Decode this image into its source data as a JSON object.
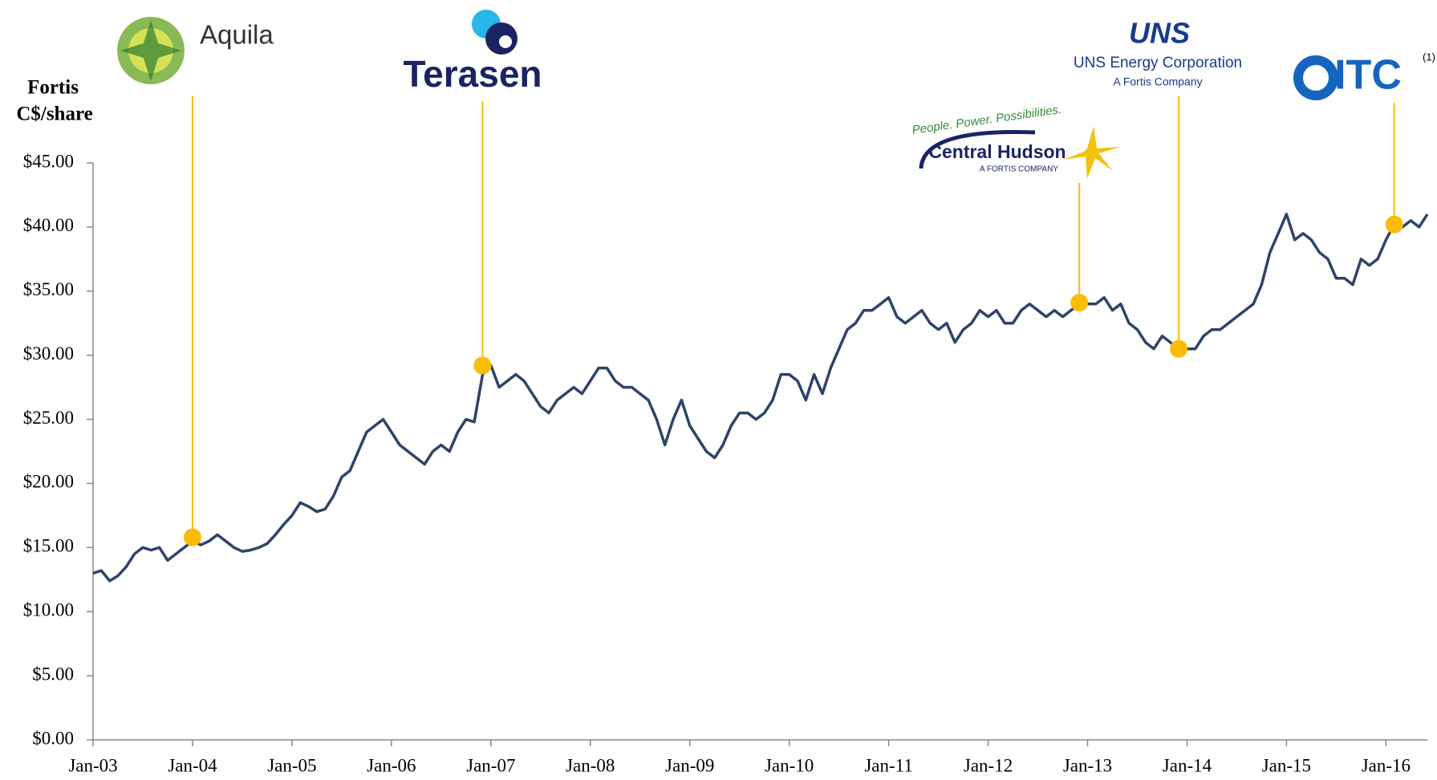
{
  "chart_data": {
    "type": "line",
    "y_label": [
      "Fortis",
      "C$/share"
    ],
    "x": [
      "2003-01",
      "2003-02",
      "2003-03",
      "2003-04",
      "2003-05",
      "2003-06",
      "2003-07",
      "2003-08",
      "2003-09",
      "2003-10",
      "2003-11",
      "2003-12",
      "2004-01",
      "2004-02",
      "2004-03",
      "2004-04",
      "2004-05",
      "2004-06",
      "2004-07",
      "2004-08",
      "2004-09",
      "2004-10",
      "2004-11",
      "2004-12",
      "2005-01",
      "2005-02",
      "2005-03",
      "2005-04",
      "2005-05",
      "2005-06",
      "2005-07",
      "2005-08",
      "2005-09",
      "2005-10",
      "2005-11",
      "2005-12",
      "2006-01",
      "2006-02",
      "2006-03",
      "2006-04",
      "2006-05",
      "2006-06",
      "2006-07",
      "2006-08",
      "2006-09",
      "2006-10",
      "2006-11",
      "2006-12",
      "2007-01",
      "2007-02",
      "2007-03",
      "2007-04",
      "2007-05",
      "2007-06",
      "2007-07",
      "2007-08",
      "2007-09",
      "2007-10",
      "2007-11",
      "2007-12",
      "2008-01",
      "2008-02",
      "2008-03",
      "2008-04",
      "2008-05",
      "2008-06",
      "2008-07",
      "2008-08",
      "2008-09",
      "2008-10",
      "2008-11",
      "2008-12",
      "2009-01",
      "2009-02",
      "2009-03",
      "2009-04",
      "2009-05",
      "2009-06",
      "2009-07",
      "2009-08",
      "2009-09",
      "2009-10",
      "2009-11",
      "2009-12",
      "2010-01",
      "2010-02",
      "2010-03",
      "2010-04",
      "2010-05",
      "2010-06",
      "2010-07",
      "2010-08",
      "2010-09",
      "2010-10",
      "2010-11",
      "2010-12",
      "2011-01",
      "2011-02",
      "2011-03",
      "2011-04",
      "2011-05",
      "2011-06",
      "2011-07",
      "2011-08",
      "2011-09",
      "2011-10",
      "2011-11",
      "2011-12",
      "2012-01",
      "2012-02",
      "2012-03",
      "2012-04",
      "2012-05",
      "2012-06",
      "2012-07",
      "2012-08",
      "2012-09",
      "2012-10",
      "2012-11",
      "2012-12",
      "2013-01",
      "2013-02",
      "2013-03",
      "2013-04",
      "2013-05",
      "2013-06",
      "2013-07",
      "2013-08",
      "2013-09",
      "2013-10",
      "2013-11",
      "2013-12",
      "2014-01",
      "2014-02",
      "2014-03",
      "2014-04",
      "2014-05",
      "2014-06",
      "2014-07",
      "2014-08",
      "2014-09",
      "2014-10",
      "2014-11",
      "2014-12",
      "2015-01",
      "2015-02",
      "2015-03",
      "2015-04",
      "2015-05",
      "2015-06",
      "2015-07",
      "2015-08",
      "2015-09",
      "2015-10",
      "2015-11",
      "2015-12",
      "2016-01",
      "2016-02",
      "2016-03",
      "2016-04",
      "2016-05",
      "2016-06"
    ],
    "series": [
      {
        "name": "Fortis",
        "color": "#2e4468",
        "values": [
          13.0,
          13.2,
          12.4,
          12.8,
          13.5,
          14.5,
          15.0,
          14.8,
          15.0,
          14.0,
          14.5,
          15.0,
          15.5,
          15.2,
          15.5,
          16.0,
          15.5,
          15.0,
          14.7,
          14.8,
          15.0,
          15.3,
          16.0,
          16.8,
          17.5,
          18.5,
          18.2,
          17.8,
          18.0,
          19.0,
          20.5,
          21.0,
          22.5,
          24.0,
          24.5,
          25.0,
          24.0,
          23.0,
          22.5,
          22.0,
          21.5,
          22.5,
          23.0,
          22.5,
          24.0,
          25.0,
          24.8,
          28.5,
          29.2,
          27.5,
          28.0,
          28.5,
          28.0,
          27.0,
          26.0,
          25.5,
          26.5,
          27.0,
          27.5,
          27.0,
          28.0,
          29.0,
          29.0,
          28.0,
          27.5,
          27.5,
          27.0,
          26.5,
          25.0,
          23.0,
          25.0,
          26.5,
          24.5,
          23.5,
          22.5,
          22.0,
          23.0,
          24.5,
          25.5,
          25.5,
          25.0,
          25.5,
          26.5,
          28.5,
          28.5,
          28.0,
          26.5,
          28.5,
          27.0,
          29.0,
          30.5,
          32.0,
          32.5,
          33.5,
          33.5,
          34.0,
          34.5,
          33.0,
          32.5,
          33.0,
          33.5,
          32.5,
          32.0,
          32.5,
          31.0,
          32.0,
          32.5,
          33.5,
          33.0,
          33.5,
          32.5,
          32.5,
          33.5,
          34.0,
          33.5,
          33.0,
          33.5,
          33.0,
          33.5,
          34.0,
          34.0,
          34.0,
          34.5,
          33.5,
          34.0,
          32.5,
          32.0,
          31.0,
          30.5,
          31.5,
          31.0,
          30.5,
          30.5,
          30.5,
          31.5,
          32.0,
          32.0,
          32.5,
          33.0,
          33.5,
          34.0,
          35.5,
          38.0,
          39.5,
          41.0,
          39.0,
          39.5,
          39.0,
          38.0,
          37.5,
          36.0,
          36.0,
          35.5,
          37.5,
          37.0,
          37.5,
          39.0,
          40.2,
          40.0,
          40.5,
          40.0,
          41.0
        ]
      }
    ],
    "events": {
      "color": "#fbbc05",
      "points": [
        {
          "x": "2004-01",
          "value": 15.8,
          "texts": [
            "Aquila"
          ]
        },
        {
          "x": "2006-12",
          "value": 29.2,
          "texts": [
            "Terasen"
          ]
        },
        {
          "x": "2012-12",
          "value": 34.1,
          "texts": [
            "People. Power. Possibilities.",
            "Central Hudson",
            "A FORTIS COMPANY"
          ]
        },
        {
          "x": "2013-12",
          "value": 30.5,
          "texts": [
            "UNS",
            "UNS Energy Corporation",
            "A Fortis Company"
          ]
        },
        {
          "x": "2016-02",
          "value": 40.2,
          "texts": [
            "ITC",
            "(1)"
          ]
        }
      ]
    },
    "xlim": [
      "2003-01",
      "2016-06"
    ],
    "xticks": [
      {
        "value": "2003-01",
        "label": "Jan-03"
      },
      {
        "value": "2004-01",
        "label": "Jan-04"
      },
      {
        "value": "2005-01",
        "label": "Jan-05"
      },
      {
        "value": "2006-01",
        "label": "Jan-06"
      },
      {
        "value": "2007-01",
        "label": "Jan-07"
      },
      {
        "value": "2008-01",
        "label": "Jan-08"
      },
      {
        "value": "2009-01",
        "label": "Jan-09"
      },
      {
        "value": "2010-01",
        "label": "Jan-10"
      },
      {
        "value": "2011-01",
        "label": "Jan-11"
      },
      {
        "value": "2012-01",
        "label": "Jan-12"
      },
      {
        "value": "2013-01",
        "label": "Jan-13"
      },
      {
        "value": "2014-01",
        "label": "Jan-14"
      },
      {
        "value": "2015-01",
        "label": "Jan-15"
      },
      {
        "value": "2016-01",
        "label": "Jan-16"
      }
    ],
    "ylim": [
      0,
      45
    ],
    "yticks": [
      {
        "value": 0,
        "label": "$0.00"
      },
      {
        "value": 5,
        "label": "$5.00"
      },
      {
        "value": 10,
        "label": "$10.00"
      },
      {
        "value": 15,
        "label": "$15.00"
      },
      {
        "value": 20,
        "label": "$20.00"
      },
      {
        "value": 25,
        "label": "$25.00"
      },
      {
        "value": 30,
        "label": "$30.00"
      },
      {
        "value": 35,
        "label": "$35.00"
      },
      {
        "value": 40,
        "label": "$40.00"
      },
      {
        "value": 45,
        "label": "$45.00"
      }
    ],
    "grid": false
  }
}
